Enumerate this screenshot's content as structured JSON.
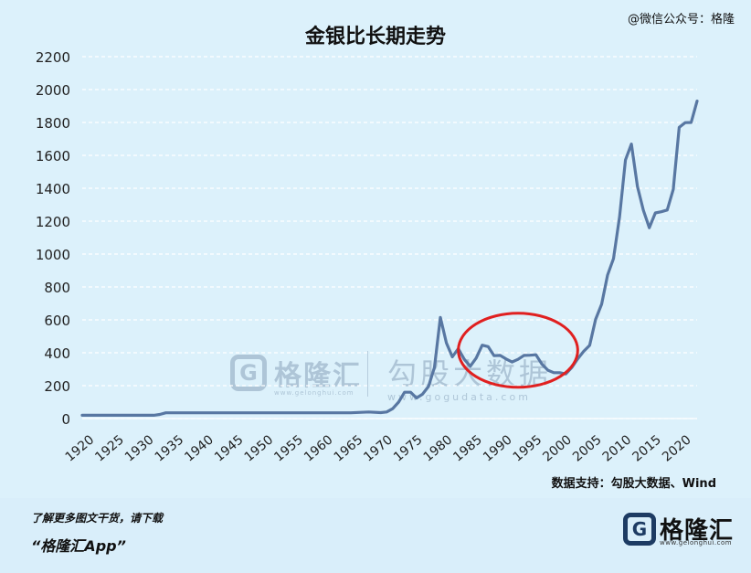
{
  "header": {
    "title": "金银比长期走势",
    "wechat": "@微信公众号：格隆"
  },
  "watermarks": {
    "glh_icon": "G",
    "glh_name": "格隆汇",
    "glh_url": "www.gelonghui.com",
    "gogu_name": "勾股大数据",
    "gogu_url": "www.gogudata.com"
  },
  "footer": {
    "source": "数据支持：勾股大数据、Wind",
    "line1": "了解更多图文干货，请下载",
    "line2": "“格隆汇App”",
    "brand_icon": "G",
    "brand_name": "格隆汇",
    "brand_url": "www.gelonghui.com"
  },
  "colors": {
    "line": "#5877a2",
    "grid": "#ffffff",
    "circle": "#e02020",
    "background": "#dcf1fb"
  },
  "chart_data": {
    "type": "line",
    "title": "金银比长期走势",
    "xlabel": "",
    "ylabel": "",
    "xlim": [
      1920,
      2023
    ],
    "ylim": [
      0,
      2200
    ],
    "yticks": [
      0,
      200,
      400,
      600,
      800,
      1000,
      1200,
      1400,
      1600,
      1800,
      2000,
      2200
    ],
    "xticks": [
      1920,
      1925,
      1930,
      1935,
      1940,
      1945,
      1950,
      1955,
      1960,
      1965,
      1970,
      1975,
      1980,
      1985,
      1990,
      1995,
      2000,
      2005,
      2010,
      2015,
      2020
    ],
    "grid": "horizontal-dashed",
    "series": [
      {
        "name": "",
        "x": [
          1920,
          1925,
          1930,
          1932,
          1933,
          1934,
          1940,
          1950,
          1960,
          1965,
          1968,
          1970,
          1971,
          1972,
          1973,
          1974,
          1975,
          1976,
          1977,
          1978,
          1979,
          1980,
          1981,
          1982,
          1983,
          1984,
          1985,
          1986,
          1987,
          1988,
          1989,
          1990,
          1991,
          1992,
          1993,
          1994,
          1995,
          1996,
          1997,
          1998,
          1999,
          2000,
          2001,
          2002,
          2003,
          2004,
          2005,
          2006,
          2007,
          2008,
          2009,
          2010,
          2011,
          2012,
          2013,
          2014,
          2015,
          2016,
          2017,
          2018,
          2019,
          2020,
          2021,
          2022,
          2023
        ],
        "y": [
          20,
          20,
          20,
          20,
          25,
          35,
          35,
          35,
          35,
          35,
          40,
          36,
          40,
          60,
          100,
          160,
          160,
          125,
          148,
          195,
          310,
          615,
          460,
          375,
          425,
          360,
          318,
          368,
          446,
          437,
          382,
          384,
          362,
          344,
          360,
          384,
          385,
          388,
          331,
          294,
          279,
          279,
          271,
          310,
          363,
          409,
          445,
          603,
          695,
          872,
          972,
          1225,
          1572,
          1669,
          1411,
          1266,
          1160,
          1250,
          1257,
          1268,
          1393,
          1770,
          1799,
          1800,
          1930
        ]
      }
    ],
    "annotations": [
      {
        "type": "ellipse",
        "color": "#e02020",
        "x_range": [
          1983,
          2003
        ],
        "y_range": [
          190,
          640
        ]
      }
    ]
  }
}
